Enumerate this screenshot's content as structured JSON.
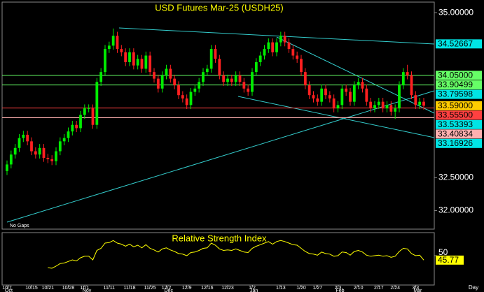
{
  "chart_data": {
    "type": "candlestick",
    "title": "USD Futures Mar-25 (USDH25)",
    "note": "No Gaps",
    "x_label": "Day",
    "up_color": "#00ee00",
    "down_color": "#ff2020",
    "ylim": [
      31.72,
      35.16
    ],
    "yticks": [
      {
        "value": 35,
        "label": "35.00000"
      },
      {
        "value": 32.5,
        "label": "32.50000"
      },
      {
        "value": 32,
        "label": "32.00000"
      }
    ],
    "categories": [
      "10/7",
      null,
      null,
      null,
      null,
      null,
      "10/15",
      null,
      null,
      null,
      "10/21",
      null,
      null,
      null,
      null,
      "10/28",
      null,
      null,
      null,
      "11/1",
      null,
      null,
      null,
      null,
      null,
      "11/11",
      null,
      null,
      null,
      null,
      "11/18",
      null,
      null,
      null,
      null,
      "11/25",
      null,
      null,
      null,
      "12/2",
      null,
      null,
      null,
      null,
      "12/9",
      null,
      null,
      null,
      null,
      "12/16",
      null,
      null,
      null,
      null,
      "12/23",
      null,
      null,
      null,
      null,
      null,
      "1/2",
      null,
      null,
      null,
      null,
      null,
      null,
      "1/13",
      null,
      null,
      null,
      null,
      "1/20",
      null,
      null,
      null,
      "1/27",
      null,
      null,
      null,
      null,
      "2/3",
      null,
      null,
      null,
      null,
      "2/10",
      null,
      null,
      null,
      null,
      "2/17",
      null,
      null,
      null,
      "2/24",
      null,
      null,
      null,
      null,
      "3/3",
      null,
      null
    ],
    "months": [
      "Oct",
      null,
      null,
      null,
      null,
      null,
      null,
      null,
      null,
      null,
      null,
      null,
      null,
      null,
      null,
      null,
      null,
      null,
      null,
      "Nov",
      null,
      null,
      null,
      null,
      null,
      null,
      null,
      null,
      null,
      null,
      null,
      null,
      null,
      null,
      null,
      null,
      null,
      null,
      null,
      "Dec",
      null,
      null,
      null,
      null,
      null,
      null,
      null,
      null,
      null,
      null,
      null,
      null,
      null,
      null,
      null,
      null,
      null,
      null,
      null,
      null,
      "Jan",
      null,
      null,
      null,
      null,
      null,
      null,
      null,
      null,
      null,
      null,
      null,
      null,
      null,
      null,
      null,
      null,
      null,
      null,
      null,
      null,
      "Feb",
      null,
      null,
      null,
      null,
      null,
      null,
      null,
      null,
      null,
      null,
      null,
      null,
      null,
      null,
      null,
      null,
      null,
      null,
      "Mar",
      null,
      null
    ],
    "candles": [
      [
        32.6,
        32.76,
        32.54,
        32.7
      ],
      [
        32.7,
        32.91,
        32.64,
        32.85
      ],
      [
        32.85,
        33.01,
        32.79,
        32.95
      ],
      [
        32.95,
        33.16,
        32.89,
        33.1
      ],
      [
        33.1,
        33.21,
        33.04,
        33.15
      ],
      [
        33.15,
        33.21,
        32.99,
        33.05
      ],
      [
        33.05,
        33.11,
        32.84,
        32.9
      ],
      [
        32.9,
        32.96,
        32.79,
        32.85
      ],
      [
        32.85,
        33.01,
        32.79,
        32.95
      ],
      [
        32.95,
        33.01,
        32.74,
        32.8
      ],
      [
        32.8,
        32.86,
        32.72,
        32.78
      ],
      [
        32.78,
        32.84,
        32.69,
        32.75
      ],
      [
        32.75,
        32.96,
        32.69,
        32.9
      ],
      [
        32.9,
        33.11,
        32.84,
        33.05
      ],
      [
        33.05,
        33.16,
        32.99,
        33.1
      ],
      [
        33.1,
        33.26,
        33.04,
        33.2
      ],
      [
        33.2,
        33.36,
        33.14,
        33.3
      ],
      [
        33.3,
        33.36,
        33.19,
        33.25
      ],
      [
        33.25,
        33.51,
        33.19,
        33.45
      ],
      [
        33.45,
        33.61,
        33.39,
        33.55
      ],
      [
        33.55,
        33.61,
        33.49,
        33.55
      ],
      [
        33.55,
        33.61,
        33.24,
        33.3
      ],
      [
        33.3,
        34.01,
        33.24,
        33.95
      ],
      [
        33.95,
        34.16,
        33.89,
        34.1
      ],
      [
        34.1,
        34.51,
        34.04,
        34.45
      ],
      [
        34.45,
        34.56,
        34.39,
        34.5
      ],
      [
        34.5,
        34.76,
        34.44,
        34.65
      ],
      [
        34.65,
        34.71,
        34.39,
        34.45
      ],
      [
        34.45,
        34.51,
        34.34,
        34.4
      ],
      [
        34.4,
        34.46,
        34.19,
        34.25
      ],
      [
        34.25,
        34.46,
        34.19,
        34.4
      ],
      [
        34.4,
        34.46,
        34.14,
        34.2
      ],
      [
        34.2,
        34.36,
        34.14,
        34.3
      ],
      [
        34.3,
        34.36,
        34.09,
        34.15
      ],
      [
        34.15,
        34.41,
        34.09,
        34.35
      ],
      [
        34.35,
        34.41,
        34.04,
        34.1
      ],
      [
        34.1,
        34.16,
        33.94,
        34.0
      ],
      [
        34.0,
        34.06,
        33.79,
        33.85
      ],
      [
        33.85,
        34.11,
        33.79,
        34.05
      ],
      [
        34.05,
        34.21,
        33.99,
        34.15
      ],
      [
        34.15,
        34.21,
        33.94,
        34.0
      ],
      [
        34.0,
        34.06,
        33.84,
        33.9
      ],
      [
        33.9,
        33.96,
        33.69,
        33.75
      ],
      [
        33.75,
        33.81,
        33.64,
        33.7
      ],
      [
        33.7,
        33.76,
        33.54,
        33.6
      ],
      [
        33.6,
        33.86,
        33.54,
        33.8
      ],
      [
        33.8,
        33.91,
        33.74,
        33.85
      ],
      [
        33.85,
        34.01,
        33.79,
        33.95
      ],
      [
        33.95,
        34.16,
        33.89,
        34.1
      ],
      [
        34.1,
        34.21,
        34.04,
        34.15
      ],
      [
        34.15,
        34.51,
        34.09,
        34.45
      ],
      [
        34.45,
        34.51,
        34.24,
        34.3
      ],
      [
        34.3,
        34.36,
        33.99,
        34.05
      ],
      [
        34.05,
        34.11,
        33.89,
        33.95
      ],
      [
        33.95,
        34.06,
        33.89,
        34.0
      ],
      [
        34.0,
        34.06,
        33.89,
        33.95
      ],
      [
        33.95,
        34.11,
        33.89,
        34.05
      ],
      [
        34.05,
        34.11,
        33.89,
        33.95
      ],
      [
        33.95,
        34.01,
        33.79,
        33.85
      ],
      [
        33.85,
        33.91,
        33.74,
        33.8
      ],
      [
        33.8,
        34.16,
        33.74,
        34.1
      ],
      [
        34.1,
        34.31,
        34.04,
        34.25
      ],
      [
        34.25,
        34.41,
        34.19,
        34.35
      ],
      [
        34.35,
        34.51,
        34.29,
        34.45
      ],
      [
        34.45,
        34.61,
        34.39,
        34.55
      ],
      [
        34.55,
        34.61,
        34.34,
        34.4
      ],
      [
        34.4,
        34.61,
        34.34,
        34.55
      ],
      [
        34.55,
        34.71,
        34.49,
        34.65
      ],
      [
        34.65,
        34.71,
        34.49,
        34.55
      ],
      [
        34.55,
        34.61,
        34.39,
        34.45
      ],
      [
        34.45,
        34.51,
        34.29,
        34.35
      ],
      [
        34.35,
        34.41,
        34.24,
        34.3
      ],
      [
        34.3,
        34.36,
        34.04,
        34.1
      ],
      [
        34.1,
        34.16,
        33.84,
        33.9
      ],
      [
        33.9,
        33.96,
        33.69,
        33.75
      ],
      [
        33.75,
        33.81,
        33.64,
        33.7
      ],
      [
        33.7,
        33.76,
        33.59,
        33.65
      ],
      [
        33.65,
        33.91,
        33.59,
        33.85
      ],
      [
        33.85,
        33.91,
        33.69,
        33.75
      ],
      [
        33.75,
        33.81,
        33.64,
        33.7
      ],
      [
        33.7,
        33.76,
        33.49,
        33.55
      ],
      [
        33.55,
        33.66,
        33.49,
        33.6
      ],
      [
        33.6,
        33.91,
        33.54,
        33.85
      ],
      [
        33.85,
        33.91,
        33.74,
        33.8
      ],
      [
        33.8,
        33.86,
        33.59,
        33.65
      ],
      [
        33.65,
        33.96,
        33.59,
        33.9
      ],
      [
        33.9,
        34.01,
        33.84,
        33.95
      ],
      [
        33.95,
        34.01,
        33.79,
        33.85
      ],
      [
        33.85,
        33.91,
        33.59,
        33.65
      ],
      [
        33.65,
        33.71,
        33.49,
        33.55
      ],
      [
        33.55,
        33.66,
        33.49,
        33.6
      ],
      [
        33.6,
        33.71,
        33.54,
        33.65
      ],
      [
        33.65,
        33.71,
        33.49,
        33.55
      ],
      [
        33.55,
        33.66,
        33.49,
        33.6
      ],
      [
        33.6,
        33.66,
        33.44,
        33.5
      ],
      [
        33.5,
        33.61,
        33.39,
        33.55
      ],
      [
        33.55,
        33.96,
        33.49,
        33.9
      ],
      [
        33.9,
        34.16,
        33.84,
        34.1
      ],
      [
        34.1,
        34.21,
        33.99,
        34.05
      ],
      [
        34.05,
        34.11,
        33.69,
        33.75
      ],
      [
        33.75,
        33.81,
        33.54,
        33.6
      ],
      [
        33.6,
        33.71,
        33.54,
        33.65
      ],
      [
        33.65,
        33.71,
        33.53,
        33.59
      ]
    ],
    "levels": [
      {
        "value": 34.52667,
        "label": "34.52667",
        "color": "#00e5e5",
        "line": false
      },
      {
        "value": 34.05,
        "label": "34.05000",
        "color": "#66ff66",
        "line": true
      },
      {
        "value": 33.90499,
        "label": "33.90499",
        "color": "#66ff66",
        "line": true
      },
      {
        "value": 33.79598,
        "label": "33.79598",
        "color": "#00e5e5",
        "line": false
      },
      {
        "value": 33.59,
        "label": "33.59000",
        "color": "#ffcc00",
        "line": false
      },
      {
        "value": 33.555,
        "label": "33.55500",
        "color": "#ff4040",
        "line": true
      },
      {
        "value": 33.53393,
        "label": "33.53393",
        "color": "#00e5e5",
        "line": false
      },
      {
        "value": 33.40834,
        "label": "33.40834",
        "color": "#ffb0b0",
        "line": true
      },
      {
        "value": 33.16926,
        "label": "33.16926",
        "color": "#00e5e5",
        "line": false
      }
    ],
    "rsi": {
      "title": "Relative Strength Index",
      "color": "#ffff00",
      "ylim": [
        22,
        72
      ],
      "yticks": [
        50
      ],
      "last_value": 45.77,
      "values": [
        null,
        null,
        null,
        null,
        null,
        null,
        null,
        null,
        null,
        null,
        38.5,
        38,
        40,
        42.5,
        43,
        44.5,
        46,
        45,
        48,
        49.5,
        49.5,
        46,
        55,
        57,
        62,
        62.5,
        64.5,
        62,
        61,
        59,
        61,
        58.5,
        60,
        57.5,
        60.5,
        57,
        55.5,
        53.5,
        56.5,
        57.5,
        55.5,
        54,
        52,
        51.5,
        50,
        53,
        53.5,
        55,
        57,
        57.5,
        62,
        60,
        56.5,
        55,
        55.5,
        55,
        56.5,
        55,
        53.5,
        53,
        57,
        59,
        60.5,
        62,
        63.5,
        61,
        63.5,
        64.5,
        63.5,
        62,
        60.5,
        60,
        57,
        54,
        52,
        51.5,
        50.5,
        53.5,
        52,
        51.5,
        49.5,
        50,
        53.5,
        53,
        50.5,
        54,
        55,
        53.5,
        50.5,
        49.5,
        50,
        50.5,
        49.5,
        50,
        48.5,
        49.5,
        54,
        57,
        56.5,
        52,
        50,
        50.5,
        45.77
      ]
    }
  }
}
